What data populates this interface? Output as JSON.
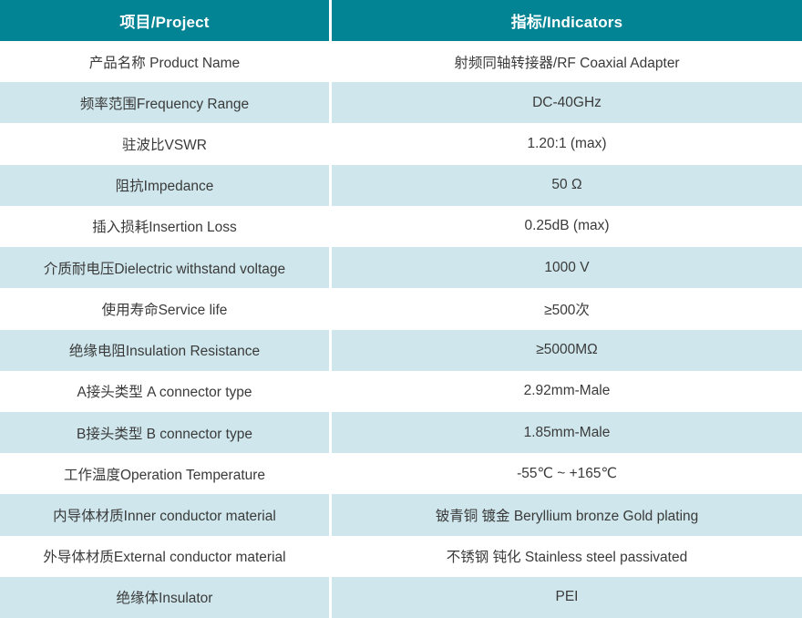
{
  "colors": {
    "header_bg": "#028494",
    "header_text": "#ffffff",
    "row_bg": "#ffffff",
    "row_alt_bg": "#cfe7ec",
    "body_text": "#3a3a3a",
    "divider": "#ffffff"
  },
  "table": {
    "columns": [
      {
        "label": "项目/Project"
      },
      {
        "label": "指标/Indicators"
      }
    ],
    "rows": [
      {
        "project": "产品名称 Product Name",
        "indicator": "射频同轴转接器/RF Coaxial Adapter"
      },
      {
        "project": "频率范围Frequency Range",
        "indicator": "DC-40GHz"
      },
      {
        "project": "驻波比VSWR",
        "indicator": "1.20:1 (max)"
      },
      {
        "project": "阻抗Impedance",
        "indicator": "50 Ω"
      },
      {
        "project": "插入损耗Insertion Loss",
        "indicator": "0.25dB (max)"
      },
      {
        "project": "介质耐电压Dielectric withstand voltage",
        "indicator": "1000 V"
      },
      {
        "project": "使用寿命Service life",
        "indicator": "≥500次"
      },
      {
        "project": "绝缘电阻Insulation Resistance",
        "indicator": "≥5000MΩ"
      },
      {
        "project": "A接头类型 A connector type",
        "indicator": "2.92mm-Male"
      },
      {
        "project": "B接头类型 B connector type",
        "indicator": "1.85mm-Male"
      },
      {
        "project": "工作温度Operation Temperature",
        "indicator": "-55℃ ~ +165℃"
      },
      {
        "project": "内导体材质Inner conductor material",
        "indicator": "铍青铜 镀金 Beryllium bronze Gold plating"
      },
      {
        "project": "外导体材质External conductor material",
        "indicator": "不锈钢 钝化 Stainless steel passivated"
      },
      {
        "project": "绝缘体Insulator",
        "indicator": "PEI"
      }
    ]
  }
}
